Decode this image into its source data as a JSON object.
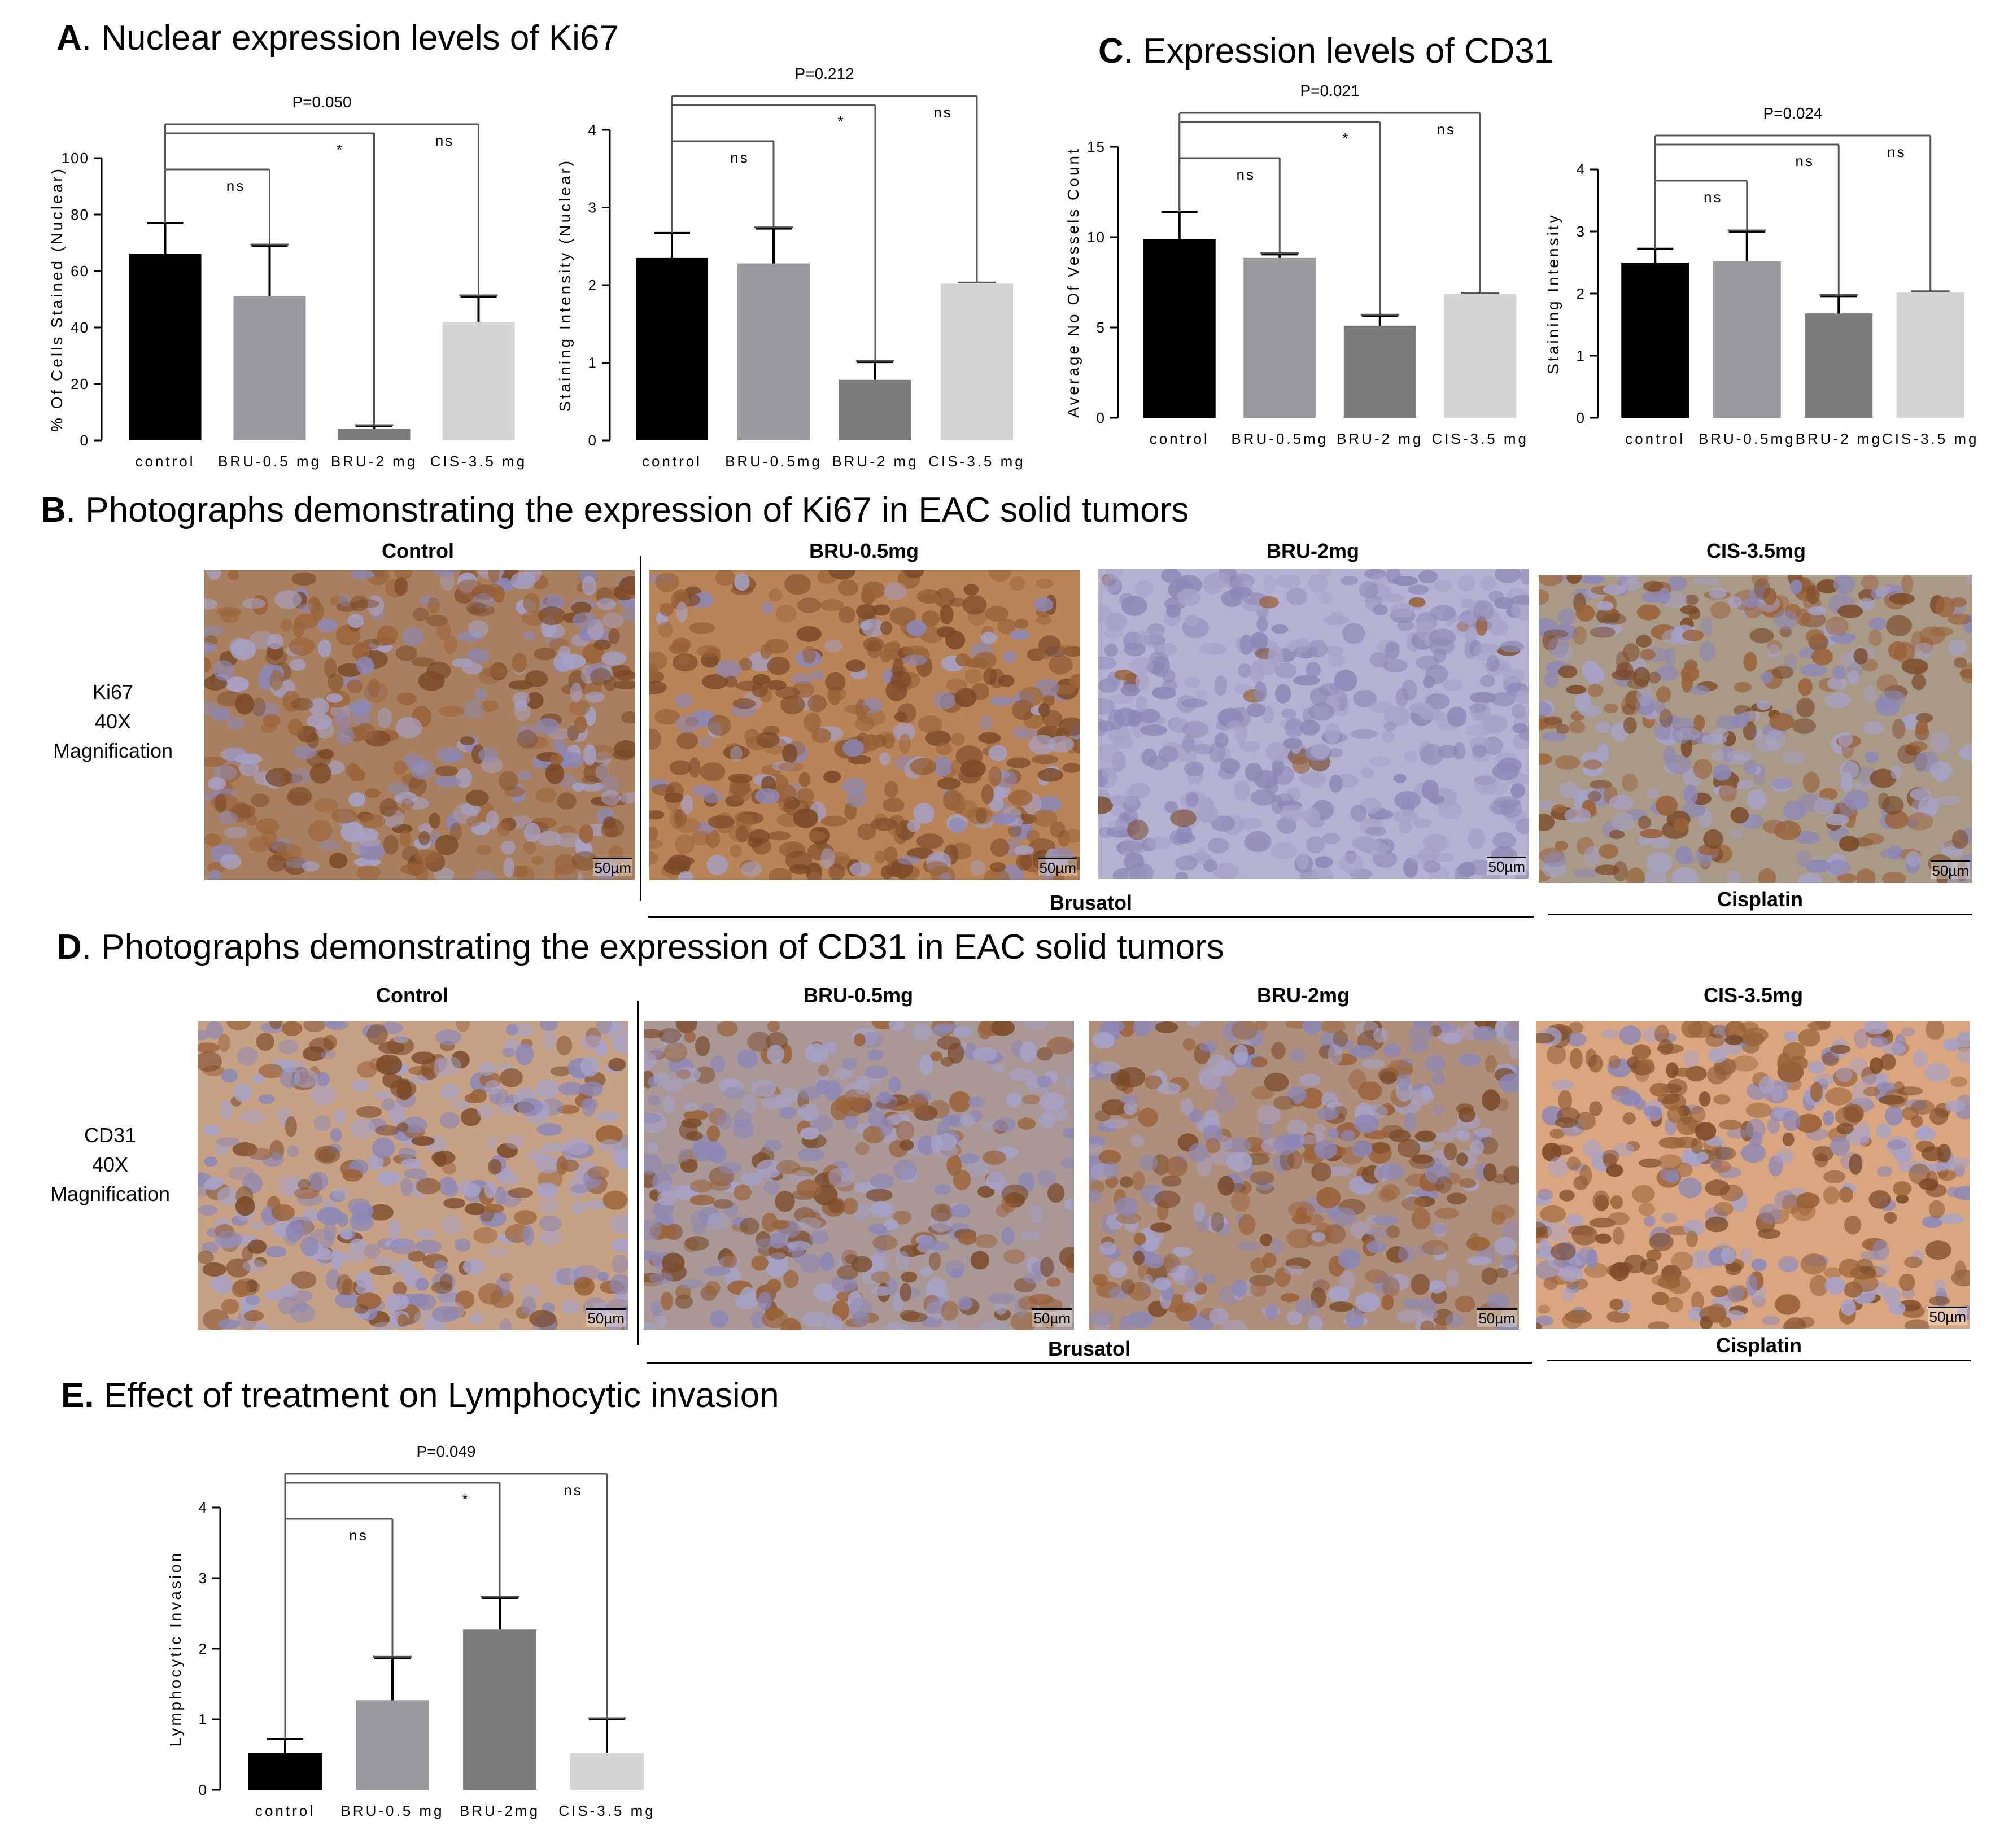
{
  "headings": {
    "A": {
      "letter": "A",
      "text": ". Nuclear expression levels of Ki67"
    },
    "B": {
      "letter": "B",
      "text": ". Photographs demonstrating the expression of Ki67 in EAC solid tumors"
    },
    "C": {
      "letter": "C",
      "text": ".  Expression levels of CD31"
    },
    "D": {
      "letter": "D",
      "text": ". Photographs demonstrating the expression of CD31 in EAC solid tumors"
    },
    "E": {
      "letter": "E.",
      "text": " Effect of treatment on Lymphocytic invasion"
    }
  },
  "colors": {
    "control": "#000000",
    "bru05": "#9a9a9e",
    "bru2": "#7b7b7b",
    "cis": "#d4d4d4"
  },
  "chart_data": [
    {
      "id": "A1",
      "type": "bar",
      "ylabel": "% Of Cells Stained (Nuclear)",
      "categories": [
        "control",
        "BRU-0.5 mg",
        "BRU-2 mg",
        "CIS-3.5 mg"
      ],
      "values": [
        66,
        51,
        4,
        42
      ],
      "error": [
        11,
        18,
        1,
        9
      ],
      "ylim": [
        0,
        100
      ],
      "yticks": [
        0,
        20,
        40,
        60,
        80,
        100
      ],
      "annotations": [
        {
          "target": 1,
          "label": "ns"
        },
        {
          "target": 2,
          "label": "*"
        },
        {
          "target": 3,
          "label": "ns"
        }
      ],
      "p_value": "P=0.050"
    },
    {
      "id": "A2",
      "type": "bar",
      "ylabel": "Staining Intensity (Nuclear)",
      "categories": [
        "control",
        "BRU-0.5mg",
        "BRU-2 mg",
        "CIS-3.5 mg"
      ],
      "values": [
        2.35,
        2.28,
        0.78,
        2.02
      ],
      "error": [
        0.32,
        0.45,
        0.23,
        0.0
      ],
      "ylim": [
        0,
        4
      ],
      "yticks": [
        0,
        1,
        2,
        3,
        4
      ],
      "annotations": [
        {
          "target": 1,
          "label": "ns"
        },
        {
          "target": 2,
          "label": "*"
        },
        {
          "target": 3,
          "label": "ns"
        }
      ],
      "p_value": "P=0.212"
    },
    {
      "id": "C1",
      "type": "bar",
      "ylabel": "Average No Of Vessels Count",
      "categories": [
        "control",
        "BRU-0.5mg",
        "BRU-2 mg",
        "CIS-3.5 mg"
      ],
      "values": [
        9.9,
        8.85,
        5.1,
        6.85
      ],
      "error": [
        1.5,
        0.2,
        0.55,
        0.0
      ],
      "ylim": [
        0,
        15
      ],
      "yticks": [
        0,
        5,
        10,
        15
      ],
      "annotations": [
        {
          "target": 1,
          "label": "ns"
        },
        {
          "target": 2,
          "label": "*"
        },
        {
          "target": 3,
          "label": "ns"
        }
      ],
      "p_value": "P=0.021"
    },
    {
      "id": "C2",
      "type": "bar",
      "ylabel": "Staining Intensity",
      "categories": [
        "control",
        "BRU-0.5mg",
        "BRU-2 mg",
        "CIS-3.5 mg"
      ],
      "values": [
        2.5,
        2.52,
        1.68,
        2.02
      ],
      "error": [
        0.22,
        0.48,
        0.28,
        0.0
      ],
      "ylim": [
        0,
        4
      ],
      "yticks": [
        0,
        1,
        2,
        3,
        4
      ],
      "annotations": [
        {
          "target": 1,
          "label": "ns"
        },
        {
          "target": 2,
          "label": "ns"
        },
        {
          "target": 3,
          "label": "ns"
        }
      ],
      "p_value": "P=0.024"
    },
    {
      "id": "E1",
      "type": "bar",
      "ylabel": "Lymphocytic Invasion",
      "categories": [
        "control",
        "BRU-0.5 mg",
        "BRU-2mg",
        "CIS-3.5 mg"
      ],
      "values": [
        0.52,
        1.27,
        2.27,
        0.52
      ],
      "error": [
        0.2,
        0.6,
        0.45,
        0.48
      ],
      "ylim": [
        0,
        4
      ],
      "yticks": [
        0,
        1,
        2,
        3,
        4
      ],
      "annotations": [
        {
          "target": 1,
          "label": "ns"
        },
        {
          "target": 2,
          "label": "*"
        },
        {
          "target": 3,
          "label": "ns"
        }
      ],
      "p_value": "P=0.049"
    }
  ],
  "photos": {
    "ki67": {
      "side_label": [
        "Ki67",
        "40X",
        "Magnification"
      ],
      "columns": [
        "Control",
        "BRU-0.5mg",
        "BRU-2mg",
        "CIS-3.5mg"
      ],
      "groups": [
        "Brusatol",
        "Cisplatin"
      ],
      "scale": "50µm",
      "tints": [
        "#a9805f",
        "#b98458",
        "#b4b2d2",
        "#a99a88"
      ]
    },
    "cd31": {
      "side_label": [
        "CD31",
        "40X",
        "Magnification"
      ],
      "columns": [
        "Control",
        "BRU-0.5mg",
        "BRU-2mg",
        "CIS-3.5mg"
      ],
      "groups": [
        "Brusatol",
        "Cisplatin"
      ],
      "scale": "50µm",
      "tints": [
        "#c7a184",
        "#a99896",
        "#ae8f7c",
        "#d9a680"
      ]
    }
  }
}
